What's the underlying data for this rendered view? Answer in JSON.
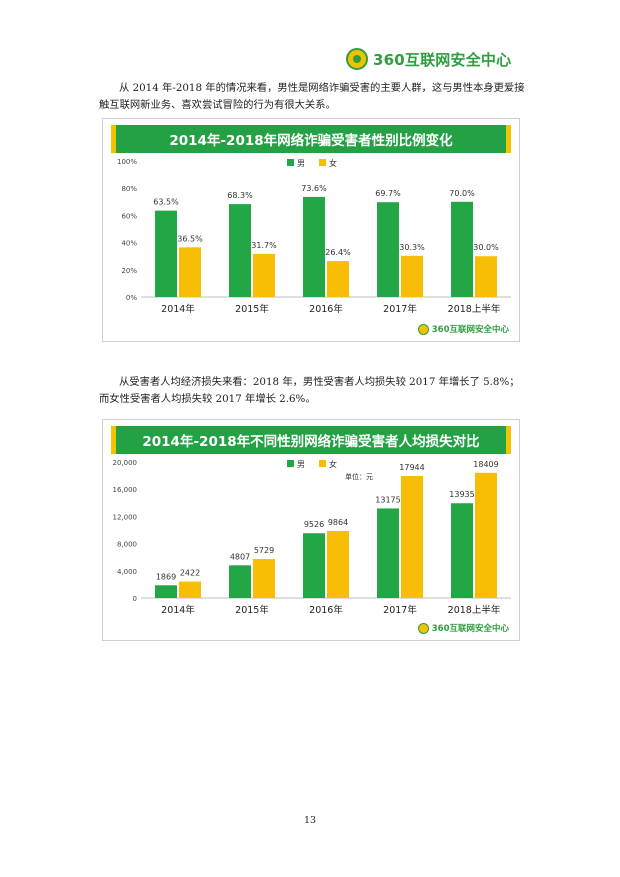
{
  "header": {
    "brand": "360互联网安全中心"
  },
  "paragraphs": {
    "p1": "从 2014 年-2018 年的情况来看，男性是网络诈骗受害的主要人群，这与男性本身更爱接触互联网新业务、喜欢尝试冒险的行为有很大关系。",
    "p2": "从受害者人均经济损失来看：2018 年，男性受害者人均损失较 2017 年增长了 5.8%；而女性受害者人均损失较 2017 年增长 2.6%。"
  },
  "footer": {
    "page_number": "13"
  },
  "chart_data": [
    {
      "type": "bar",
      "title": "2014年-2018年网络诈骗受害者性别比例变化",
      "categories": [
        "2014年",
        "2015年",
        "2016年",
        "2017年",
        "2018上半年"
      ],
      "series": [
        {
          "name": "男",
          "values": [
            63.5,
            68.3,
            73.6,
            69.7,
            70.0
          ],
          "labels": [
            "63.5%",
            "68.3%",
            "73.6%",
            "69.7%",
            "70.0%"
          ]
        },
        {
          "name": "女",
          "values": [
            36.5,
            31.7,
            26.4,
            30.3,
            30.0
          ],
          "labels": [
            "36.5%",
            "31.7%",
            "26.4%",
            "30.3%",
            "30.0%"
          ]
        }
      ],
      "ylim": [
        0,
        100
      ],
      "yticks": [
        "0%",
        "20%",
        "40%",
        "60%",
        "80%",
        "100%"
      ],
      "legend": "top-center",
      "unit_note": "",
      "watermark": "360互联网安全中心",
      "colors": {
        "男": "#23a646",
        "女": "#f8bd05"
      }
    },
    {
      "type": "bar",
      "title": "2014年-2018年不同性别网络诈骗受害者人均损失对比",
      "categories": [
        "2014年",
        "2015年",
        "2016年",
        "2017年",
        "2018上半年"
      ],
      "series": [
        {
          "name": "男",
          "values": [
            1869,
            4807,
            9526,
            13175,
            13935
          ],
          "labels": [
            "1869",
            "4807",
            "9526",
            "13175",
            "13935"
          ]
        },
        {
          "name": "女",
          "values": [
            2422,
            5729,
            9864,
            17944,
            18409
          ],
          "labels": [
            "2422",
            "5729",
            "9864",
            "17944",
            "18409"
          ]
        }
      ],
      "ylim": [
        0,
        20000
      ],
      "yticks": [
        "0",
        "4,000",
        "8,000",
        "12,000",
        "16,000",
        "20,000"
      ],
      "legend": "top-center",
      "unit_note": "单位：元",
      "watermark": "360互联网安全中心",
      "colors": {
        "男": "#23a646",
        "女": "#f8bd05"
      }
    }
  ]
}
